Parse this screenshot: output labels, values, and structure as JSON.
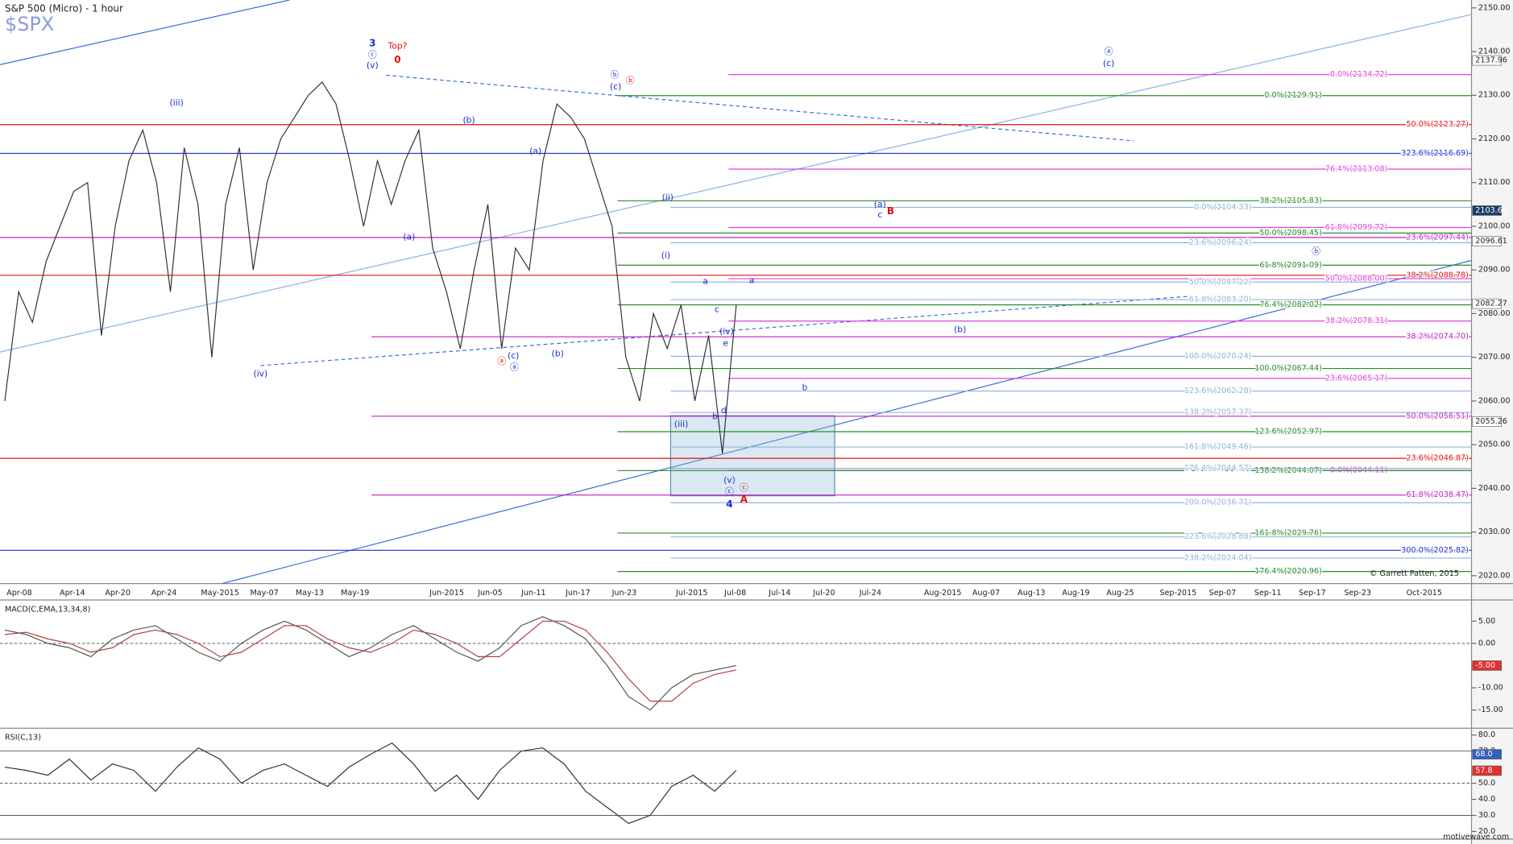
{
  "header": {
    "title": "S&P 500 (Micro) - 1 hour",
    "symbol": "$SPX"
  },
  "footer": {
    "credit": "© Garrett Patten, 2015",
    "site": "motivewave.com"
  },
  "chart_data": [
    {
      "type": "line",
      "color": "#333333",
      "ylim": [
        2018.2,
        2151.8
      ],
      "yticks": [
        {
          "value": 2020,
          "label": "2020.00"
        },
        {
          "value": 2030,
          "label": "2030.00"
        },
        {
          "value": 2040,
          "label": "2040.00"
        },
        {
          "value": 2050,
          "label": "2050.00"
        },
        {
          "value": 2060,
          "label": "2060.00"
        },
        {
          "value": 2070,
          "label": "2070.00"
        },
        {
          "value": 2080,
          "label": "2080.00"
        },
        {
          "value": 2090,
          "label": "2090.00"
        },
        {
          "value": 2100,
          "label": "2100.00"
        },
        {
          "value": 2110,
          "label": "2110.00"
        },
        {
          "value": 2120,
          "label": "2120.00"
        },
        {
          "value": 2130,
          "label": "2130.00"
        },
        {
          "value": 2140,
          "label": "2140.00"
        },
        {
          "value": 2150,
          "label": "2150.00"
        }
      ],
      "x_labels": [
        "Apr-08",
        "Apr-14",
        "Apr-20",
        "Apr-24",
        "May-2015",
        "May-07",
        "May-13",
        "May-19",
        "Jun-2015",
        "Jun-05",
        "Jun-11",
        "Jun-17",
        "Jun-23",
        "Jul-2015",
        "Jul-08",
        "Jul-14",
        "Jul-20",
        "Jul-24",
        "Aug-2015",
        "Aug-07",
        "Aug-13",
        "Aug-19",
        "Aug-25",
        "Sep-2015",
        "Sep-07",
        "Sep-11",
        "Sep-17",
        "Sep-23",
        "Oct-2015"
      ],
      "values": [
        2060,
        2085,
        2078,
        2092,
        2100,
        2108,
        2110,
        2075,
        2100,
        2115,
        2122,
        2110,
        2085,
        2118,
        2105,
        2070,
        2105,
        2118,
        2090,
        2110,
        2120,
        2125,
        2130,
        2133,
        2128,
        2115,
        2100,
        2115,
        2105,
        2115,
        2122,
        2095,
        2085,
        2072,
        2090,
        2105,
        2072,
        2095,
        2090,
        2115,
        2128,
        2125,
        2120,
        2110,
        2100,
        2070,
        2060,
        2080,
        2072,
        2082,
        2060,
        2075,
        2048,
        2082
      ],
      "levels": [
        {
          "color": "#e01010",
          "lines": [
            {
              "value": 2123.27,
              "label": "50.0%(2123.27)"
            },
            {
              "value": 2088.78,
              "label": "38.2%(2088.78)"
            },
            {
              "value": 2046.87,
              "label": "23.6%(2046.87)"
            }
          ]
        },
        {
          "color": "#1a2fd0",
          "lines": [
            {
              "value": 2116.69,
              "label": "323.6%(2116.69)"
            },
            {
              "value": 2025.82,
              "label": "300.0%(2025.82)"
            }
          ]
        },
        {
          "color": "#c020c0",
          "lines": [
            {
              "value": 2097.44,
              "label": "23.6%(2097.44)"
            }
          ]
        },
        {
          "color": "#c020c0",
          "lines": [
            {
              "value": 2074.7,
              "label": "38.2%(2074.70)"
            },
            {
              "value": 2056.51,
              "label": "50.0%(2056.51)"
            },
            {
              "value": 2038.47,
              "label": "61.8%(2038.47)"
            }
          ]
        },
        {
          "color": "#e040e0",
          "lines": [
            {
              "value": 2134.72,
              "label": "0.0%(2134.72)"
            },
            {
              "value": 2113.08,
              "label": "76.4%(2113.08)"
            },
            {
              "value": 2099.72,
              "label": "61.8%(2099.72)"
            },
            {
              "value": 2088.0,
              "label": "50.0%(2088.00)"
            },
            {
              "value": 2078.31,
              "label": "38.2%(2078.31)"
            },
            {
              "value": 2065.17,
              "label": "23.6%(2065.17)"
            },
            {
              "value": 2044.11,
              "label": "0.0%(2044.11)"
            }
          ]
        },
        {
          "color": "#2a8a2a",
          "lines": [
            {
              "value": 2129.91,
              "label": "0.0%(2129.91)"
            },
            {
              "value": 2105.83,
              "label": "38.2%(2105.83)"
            },
            {
              "value": 2098.45,
              "label": "50.0%(2098.45)"
            },
            {
              "value": 2091.09,
              "label": "61.8%(2091.09)"
            },
            {
              "value": 2082.02,
              "label": "76.4%(2082.02)"
            },
            {
              "value": 2067.44,
              "label": "100.0%(2067.44)"
            },
            {
              "value": 2052.97,
              "label": "123.6%(2052.97)"
            },
            {
              "value": 2044.07,
              "label": "138.2%(2044.07)"
            },
            {
              "value": 2029.76,
              "label": "161.8%(2029.76)"
            },
            {
              "value": 2020.96,
              "label": "176.4%(2020.96)"
            }
          ]
        },
        {
          "color": "#90b4d8",
          "lines": [
            {
              "value": 2104.33,
              "label": "0.0%(2104.33)"
            },
            {
              "value": 2096.24,
              "label": "23.6%(2096.24)"
            },
            {
              "value": 2087.22,
              "label": "50.0%(2087.22)"
            },
            {
              "value": 2083.2,
              "label": "61.8%(2083.20)"
            },
            {
              "value": 2070.24,
              "label": "100.0%(2070.24)"
            },
            {
              "value": 2062.28,
              "label": "123.6%(2062.28)"
            },
            {
              "value": 2057.37,
              "label": "138.2%(2057.37)"
            },
            {
              "value": 2049.46,
              "label": "161.8%(2049.46)"
            },
            {
              "value": 2044.57,
              "label": "176.4%(2044.57)"
            },
            {
              "value": 2036.71,
              "label": "200.0%(2036.71)"
            },
            {
              "value": 2028.88,
              "label": "223.6%(2028.88)"
            },
            {
              "value": 2024.04,
              "label": "238.2%(2024.04)"
            }
          ]
        }
      ],
      "price_badges": [
        {
          "value": 2137.96,
          "label": "2137.96",
          "color": "#ffffff"
        },
        {
          "value": 2103.6,
          "label": "2103.60",
          "color": "#1f3f6a"
        },
        {
          "value": 2096.61,
          "label": "2096.61",
          "color": "#ffffff"
        },
        {
          "value": 2082.27,
          "label": "2082.27",
          "color": "#ffffff"
        },
        {
          "value": 2055.26,
          "label": "2055.26",
          "color": "#ffffff"
        }
      ],
      "annotations": [
        {
          "text": "3",
          "color": "#1a2fd0"
        },
        {
          "text": "ⓒ",
          "color": "#1a2fd0"
        },
        {
          "text": "(v)",
          "color": "#1a2fd0"
        },
        {
          "text": "Top?",
          "color": "#e01010"
        },
        {
          "text": "0",
          "color": "#e01010"
        },
        {
          "text": "(iii)",
          "color": "#1a2fd0"
        },
        {
          "text": "(iv)",
          "color": "#1a2fd0"
        },
        {
          "text": "(a)",
          "color": "#1a2fd0"
        },
        {
          "text": "(b)",
          "color": "#1a2fd0"
        },
        {
          "text": "(a)",
          "color": "#1a2fd0"
        },
        {
          "text": "(c)",
          "color": "#1a2fd0"
        },
        {
          "text": "ⓐ",
          "color": "#e01010"
        },
        {
          "text": "ⓐ",
          "color": "#1a2fd0"
        },
        {
          "text": "(b)",
          "color": "#1a2fd0"
        },
        {
          "text": "ⓑ",
          "color": "#1a2fd0"
        },
        {
          "text": "ⓑ",
          "color": "#e01010"
        },
        {
          "text": "(c)",
          "color": "#1a2fd0"
        },
        {
          "text": "(ii)",
          "color": "#1a2fd0"
        },
        {
          "text": "(i)",
          "color": "#1a2fd0"
        },
        {
          "text": "a",
          "color": "#1a2fd0"
        },
        {
          "text": "a",
          "color": "#1a2fd0"
        },
        {
          "text": "c",
          "color": "#1a2fd0"
        },
        {
          "text": "(iv)",
          "color": "#1a2fd0"
        },
        {
          "text": "e",
          "color": "#1a2fd0"
        },
        {
          "text": "(iii)",
          "color": "#1a2fd0"
        },
        {
          "text": "b",
          "color": "#1a2fd0"
        },
        {
          "text": "d",
          "color": "#1a2fd0"
        },
        {
          "text": "(v)",
          "color": "#1a2fd0"
        },
        {
          "text": "ⓒ",
          "color": "#1a2fd0"
        },
        {
          "text": "ⓒ",
          "color": "#e01010"
        },
        {
          "text": "4",
          "color": "#1a2fd0"
        },
        {
          "text": "A",
          "color": "#e01010"
        },
        {
          "text": "ⓐ",
          "color": "#1a2fd0"
        },
        {
          "text": "(c)",
          "color": "#1a2fd0"
        },
        {
          "text": "(a)",
          "color": "#1a2fd0"
        },
        {
          "text": "c",
          "color": "#1a2fd0"
        },
        {
          "text": "B",
          "color": "#e01010"
        },
        {
          "text": "ⓑ",
          "color": "#1a2fd0"
        },
        {
          "text": "(b)",
          "color": "#1a2fd0"
        },
        {
          "text": "b",
          "color": "#1a2fd0"
        }
      ]
    },
    {
      "type": "line",
      "title": "MACD(C,EMA,13,34,8)",
      "ylim": [
        -20.2,
        9.78
      ],
      "yticks": [
        {
          "value": 5,
          "label": "5.00"
        },
        {
          "value": 0,
          "label": "0.00"
        },
        {
          "value": -5,
          "label": "-5.00"
        },
        {
          "value": -10,
          "label": "-10.00"
        },
        {
          "value": -15,
          "label": "-15.00"
        }
      ],
      "reference_lines": [
        0
      ],
      "badges": [
        {
          "value": -5,
          "label": "-5.00",
          "color": "#e03030"
        }
      ],
      "series": [
        {
          "color": "#555555",
          "values": [
            3,
            2,
            0,
            -1,
            -3,
            1,
            3,
            4,
            1,
            -2,
            -4,
            0,
            3,
            5,
            3,
            0,
            -3,
            -1,
            2,
            4,
            1,
            -2,
            -4,
            -1,
            4,
            6,
            4,
            1,
            -5,
            -12,
            -15,
            -10,
            -7,
            -6,
            -5
          ]
        },
        {
          "color": "#b04040",
          "values": [
            2,
            2.5,
            1,
            0,
            -2,
            -1,
            2,
            3,
            2,
            0,
            -3,
            -2,
            1,
            4,
            4,
            1,
            -1,
            -2,
            0,
            3,
            2,
            0,
            -3,
            -3,
            1,
            5,
            5,
            3,
            -2,
            -8,
            -13,
            -13,
            -9,
            -7,
            -6
          ]
        }
      ]
    },
    {
      "type": "line",
      "title": "RSI(C,13)",
      "ylim": [
        15.2,
        84.2
      ],
      "yticks": [
        {
          "value": 80,
          "label": "80.0"
        },
        {
          "value": 70,
          "label": "70.0"
        },
        {
          "value": 50,
          "label": "50.0"
        },
        {
          "value": 40,
          "label": "40.0"
        },
        {
          "value": 30,
          "label": "30.0"
        },
        {
          "value": 20,
          "label": "20.0"
        }
      ],
      "reference_lines": [
        70,
        50,
        30
      ],
      "badges": [
        {
          "value": 68,
          "label": "68.0",
          "color": "#3060c0"
        },
        {
          "value": 57.8,
          "label": "57.8",
          "color": "#e03030"
        }
      ],
      "series": [
        {
          "color": "#333333",
          "values": [
            60,
            58,
            55,
            65,
            52,
            62,
            58,
            45,
            60,
            72,
            65,
            50,
            58,
            62,
            55,
            48,
            60,
            68,
            75,
            62,
            45,
            55,
            40,
            58,
            70,
            72,
            62,
            45,
            35,
            25,
            30,
            48,
            55,
            45,
            58
          ]
        }
      ]
    }
  ]
}
